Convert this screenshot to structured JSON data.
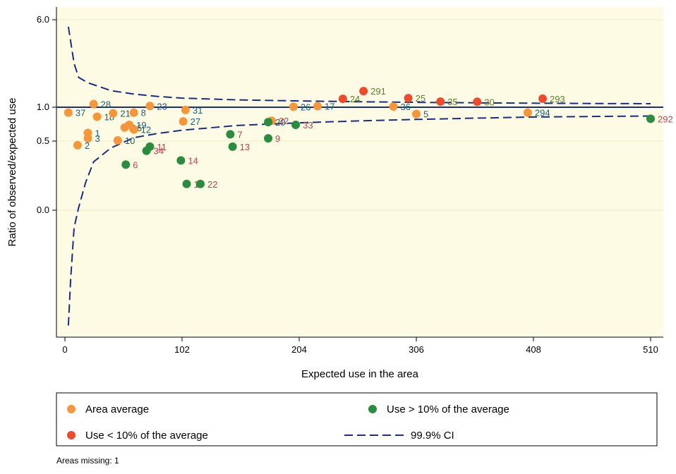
{
  "chart_data": {
    "type": "scatter",
    "title": "",
    "xlabel": "Expected use in the area",
    "ylabel": "Ratio of observed/expected use",
    "xlim": [
      0,
      510
    ],
    "x_ticks": [
      0,
      102,
      204,
      306,
      408,
      510
    ],
    "y_ticks": [
      {
        "label": "6.0",
        "value": 6.0
      },
      {
        "label": "1.0",
        "value": 1.0
      },
      {
        "label": "0.5",
        "value": 0.5
      },
      {
        "label": "0.0",
        "value": 0.0
      }
    ],
    "reference_line": 1.0,
    "colors": {
      "plot_bg": "#fdfbe4",
      "grid": "#e8ecc4",
      "area_average": "#f7953b",
      "use_below": "#ee4a2b",
      "use_above": "#2b8b3f",
      "ci": "#1a2c85",
      "ref": "#1a2c85",
      "label_teal": "#1a5f7a",
      "label_red": "#b8434c",
      "label_green": "#5b7d2a"
    },
    "series": [
      {
        "name": "Area average",
        "key": "area_average",
        "points": [
          {
            "x": 3,
            "y": 0.92,
            "label": "37",
            "lc": "label_teal"
          },
          {
            "x": 25,
            "y": 1.18,
            "label": "28",
            "lc": "label_teal"
          },
          {
            "x": 28,
            "y": 0.86,
            "label": "18",
            "lc": "label_teal"
          },
          {
            "x": 42,
            "y": 0.91,
            "label": "21",
            "lc": "label_teal"
          },
          {
            "x": 60,
            "y": 0.92,
            "label": "8",
            "lc": "label_teal"
          },
          {
            "x": 74,
            "y": 1.07,
            "label": "23",
            "lc": "label_teal"
          },
          {
            "x": 105,
            "y": 0.96,
            "label": "31",
            "lc": "label_teal"
          },
          {
            "x": 103,
            "y": 0.79,
            "label": "27",
            "lc": "label_teal"
          },
          {
            "x": 20,
            "y": 0.62,
            "label": "1",
            "lc": "label_teal"
          },
          {
            "x": 20,
            "y": 0.54,
            "label": "3",
            "lc": "label_teal"
          },
          {
            "x": 11,
            "y": 0.47,
            "label": "2",
            "lc": "label_teal"
          },
          {
            "x": 52,
            "y": 0.7,
            "label": "16",
            "lc": "label_teal"
          },
          {
            "x": 56,
            "y": 0.74,
            "label": "19",
            "lc": "label_teal"
          },
          {
            "x": 60,
            "y": 0.67,
            "label": "12",
            "lc": "label_teal"
          },
          {
            "x": 46,
            "y": 0.51,
            "label": "10",
            "lc": "label_teal"
          },
          {
            "x": 199,
            "y": 1.03,
            "label": "26",
            "lc": "label_teal"
          },
          {
            "x": 220,
            "y": 1.06,
            "label": "17",
            "lc": "label_teal"
          },
          {
            "x": 286,
            "y": 1.04,
            "label": "36",
            "lc": "label_teal"
          },
          {
            "x": 306,
            "y": 0.9,
            "label": "5",
            "lc": "label_teal"
          },
          {
            "x": 403,
            "y": 0.92,
            "label": "294",
            "lc": "label_teal"
          },
          {
            "x": 180,
            "y": 0.8,
            "label": "32",
            "lc": "label_red"
          }
        ]
      },
      {
        "name": "Use < 10% of the average",
        "key": "use_below",
        "points": [
          {
            "x": 260,
            "y": 1.92,
            "label": "291",
            "lc": "label_green"
          },
          {
            "x": 242,
            "y": 1.48,
            "label": "24",
            "lc": "label_green"
          },
          {
            "x": 299,
            "y": 1.52,
            "label": "25",
            "lc": "label_green"
          },
          {
            "x": 327,
            "y": 1.32,
            "label": "35",
            "lc": "label_green"
          },
          {
            "x": 359,
            "y": 1.31,
            "label": "30",
            "lc": "label_green"
          },
          {
            "x": 416,
            "y": 1.49,
            "label": "293",
            "lc": "label_green"
          }
        ]
      },
      {
        "name": "Use > 10% of the average",
        "key": "use_above",
        "points": [
          {
            "x": 177,
            "y": 0.78,
            "label": "20",
            "lc": "label_teal"
          },
          {
            "x": 201,
            "y": 0.74,
            "label": "33",
            "lc": "label_red"
          },
          {
            "x": 144,
            "y": 0.6,
            "label": "7",
            "lc": "label_red"
          },
          {
            "x": 177,
            "y": 0.54,
            "label": "9",
            "lc": "label_red"
          },
          {
            "x": 146,
            "y": 0.46,
            "label": "13",
            "lc": "label_red"
          },
          {
            "x": 74,
            "y": 0.46,
            "label": "11",
            "lc": "label_red"
          },
          {
            "x": 71,
            "y": 0.43,
            "label": "34",
            "lc": "label_red"
          },
          {
            "x": 101,
            "y": 0.36,
            "label": "14",
            "lc": "label_red"
          },
          {
            "x": 53,
            "y": 0.33,
            "label": "6",
            "lc": "label_red"
          },
          {
            "x": 106,
            "y": 0.19,
            "label": "15",
            "lc": "label_red"
          },
          {
            "x": 118,
            "y": 0.19,
            "label": "22",
            "lc": "label_red"
          },
          {
            "x": 510,
            "y": 0.83,
            "label": "292",
            "lc": "label_red"
          }
        ]
      }
    ],
    "ci": {
      "name": "99.9% CI",
      "upper": [
        [
          3,
          5.6
        ],
        [
          8,
          3.5
        ],
        [
          12,
          2.7
        ],
        [
          20,
          2.4
        ],
        [
          40,
          1.95
        ],
        [
          60,
          1.75
        ],
        [
          80,
          1.62
        ],
        [
          102,
          1.52
        ],
        [
          150,
          1.42
        ],
        [
          204,
          1.36
        ],
        [
          260,
          1.31
        ],
        [
          306,
          1.28
        ],
        [
          360,
          1.25
        ],
        [
          408,
          1.23
        ],
        [
          470,
          1.21
        ],
        [
          510,
          1.2
        ]
      ],
      "lower": [
        [
          3,
          -1.33
        ],
        [
          5,
          -0.8
        ],
        [
          8,
          -0.2
        ],
        [
          12,
          0.02
        ],
        [
          18,
          0.2
        ],
        [
          25,
          0.35
        ],
        [
          40,
          0.45
        ],
        [
          60,
          0.55
        ],
        [
          80,
          0.61
        ],
        [
          102,
          0.66
        ],
        [
          150,
          0.73
        ],
        [
          204,
          0.77
        ],
        [
          260,
          0.8
        ],
        [
          306,
          0.82
        ],
        [
          360,
          0.84
        ],
        [
          408,
          0.855
        ],
        [
          470,
          0.865
        ],
        [
          510,
          0.87
        ]
      ]
    },
    "legend": {
      "placement": "bottom",
      "entries": [
        {
          "label": "Area average",
          "key": "area_average",
          "kind": "marker"
        },
        {
          "label": "Use > 10% of the average",
          "key": "use_above",
          "kind": "marker"
        },
        {
          "label": "Use < 10% of the average",
          "key": "use_below",
          "kind": "marker"
        },
        {
          "label": "99.9% CI",
          "key": "ci",
          "kind": "dash"
        }
      ]
    },
    "note": "Areas missing: 1"
  }
}
